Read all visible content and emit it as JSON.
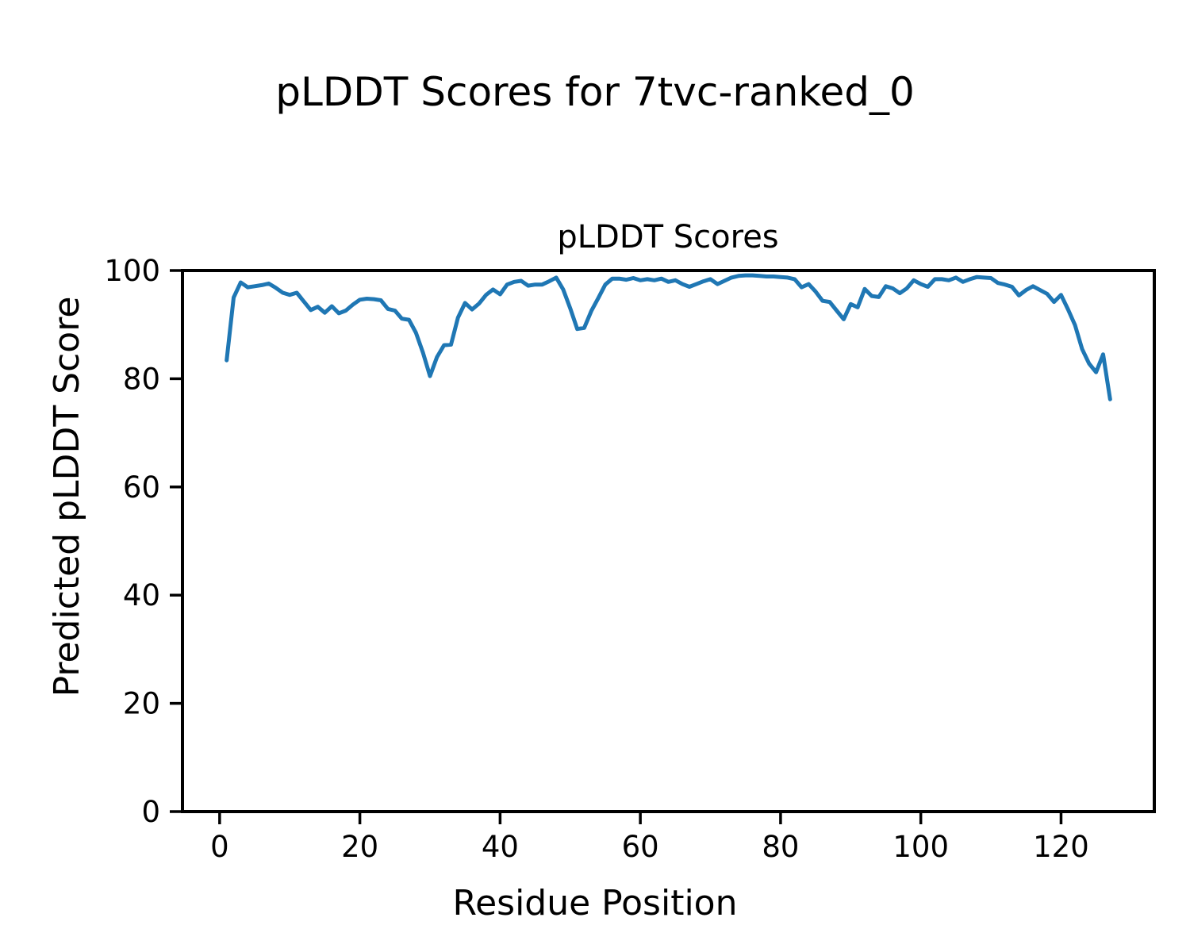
{
  "figure": {
    "suptitle": "pLDDT Scores for 7tvc-ranked_0"
  },
  "chart_data": {
    "type": "line",
    "title": "pLDDT Scores",
    "xlabel": "Residue Position",
    "ylabel": "Predicted pLDDT Score",
    "series_name": "pLDDT per residue",
    "line_color": "#1f77b4",
    "axis_color": "#000000",
    "grid": false,
    "legend": null,
    "x_start": 1,
    "x_end": 127,
    "xlim": [
      -5.3,
      133.3
    ],
    "ylim": [
      0,
      100
    ],
    "xticks": [
      0,
      20,
      40,
      60,
      80,
      100,
      120
    ],
    "yticks": [
      0,
      20,
      40,
      60,
      80,
      100
    ],
    "values": [
      83.4,
      95.0,
      97.8,
      96.9,
      97.1,
      97.3,
      97.6,
      96.8,
      95.9,
      95.5,
      95.9,
      94.3,
      92.7,
      93.3,
      92.2,
      93.4,
      92.1,
      92.6,
      93.7,
      94.6,
      94.8,
      94.7,
      94.5,
      92.9,
      92.6,
      91.1,
      90.9,
      88.5,
      84.8,
      80.5,
      84.0,
      86.2,
      86.3,
      91.3,
      94.0,
      92.8,
      93.9,
      95.5,
      96.5,
      95.6,
      97.4,
      97.9,
      98.1,
      97.2,
      97.4,
      97.4,
      98.0,
      98.7,
      96.5,
      93.0,
      89.2,
      89.4,
      92.5,
      94.9,
      97.4,
      98.5,
      98.5,
      98.3,
      98.6,
      98.2,
      98.4,
      98.2,
      98.5,
      97.9,
      98.2,
      97.5,
      97.0,
      97.5,
      98.0,
      98.4,
      97.5,
      98.1,
      98.7,
      99.0,
      99.1,
      99.1,
      99.0,
      98.9,
      98.9,
      98.8,
      98.7,
      98.4,
      96.9,
      97.5,
      96.1,
      94.4,
      94.2,
      92.6,
      91.0,
      93.8,
      93.2,
      96.6,
      95.3,
      95.1,
      97.1,
      96.7,
      95.8,
      96.7,
      98.2,
      97.5,
      97.0,
      98.4,
      98.4,
      98.2,
      98.7,
      97.9,
      98.4,
      98.8,
      98.7,
      98.6,
      97.7,
      97.4,
      97.0,
      95.4,
      96.4,
      97.1,
      96.4,
      95.7,
      94.2,
      95.5,
      92.8,
      89.9,
      85.5,
      82.8,
      81.2,
      84.5,
      76.2
    ]
  }
}
